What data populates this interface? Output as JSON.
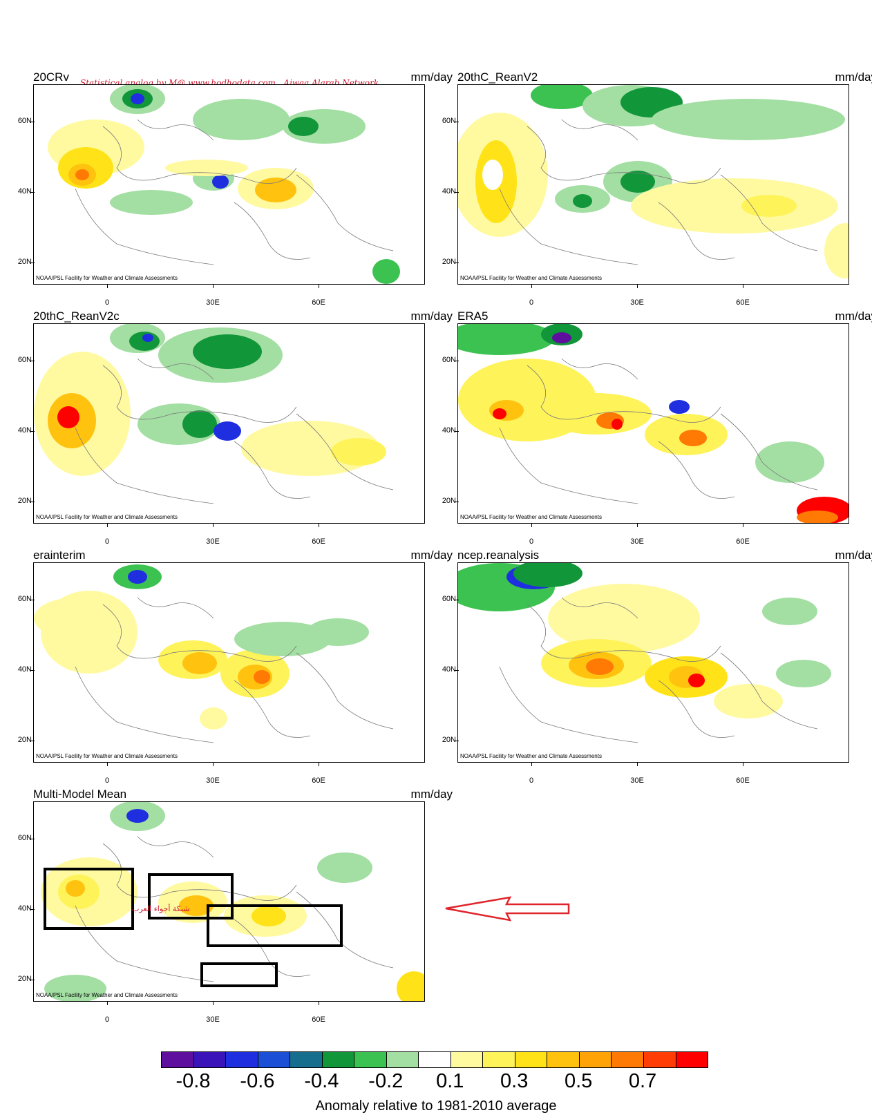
{
  "units": "mm/day",
  "credit": "NOAA/PSL Facility for Weather and Climate Assessments",
  "watermark": "Statistical analog by M@ www.hodhodata.com . Ajwaa Alarab Network.",
  "arabic_label": "شبكة أجواء العرب",
  "lat_labels": [
    "60N",
    "40N",
    "20N"
  ],
  "lon_labels": [
    "0",
    "30E",
    "60E"
  ],
  "panels": [
    {
      "title": "20CRv",
      "id": "20crv"
    },
    {
      "title": "20thC_ReanV2",
      "id": "20thc-reanv2"
    },
    {
      "title": "20thC_ReanV2c",
      "id": "20thc-reanv2c"
    },
    {
      "title": "ERA5",
      "id": "era5"
    },
    {
      "title": "erainterim",
      "id": "erainterim"
    },
    {
      "title": "ncep.reanalysis",
      "id": "ncep-reanalysis"
    },
    {
      "title": "Multi-Model Mean",
      "id": "multi-model-mean"
    }
  ],
  "colorbar": {
    "colors": [
      "#5e0f9e",
      "#3a14b8",
      "#1f2fe0",
      "#1a4fd6",
      "#156e8e",
      "#12963a",
      "#3cc251",
      "#a3dea3",
      "#ffffff",
      "#fffaa0",
      "#fff35a",
      "#ffe318",
      "#ffc20f",
      "#ffa307",
      "#ff7a05",
      "#ff3d05",
      "#ff0000"
    ],
    "labels": [
      "-0.8",
      "-0.6",
      "-0.4",
      "-0.2",
      "0.1",
      "0.3",
      "0.5",
      "0.7"
    ],
    "title": "Anomaly relative to 1981-2010 average"
  }
}
